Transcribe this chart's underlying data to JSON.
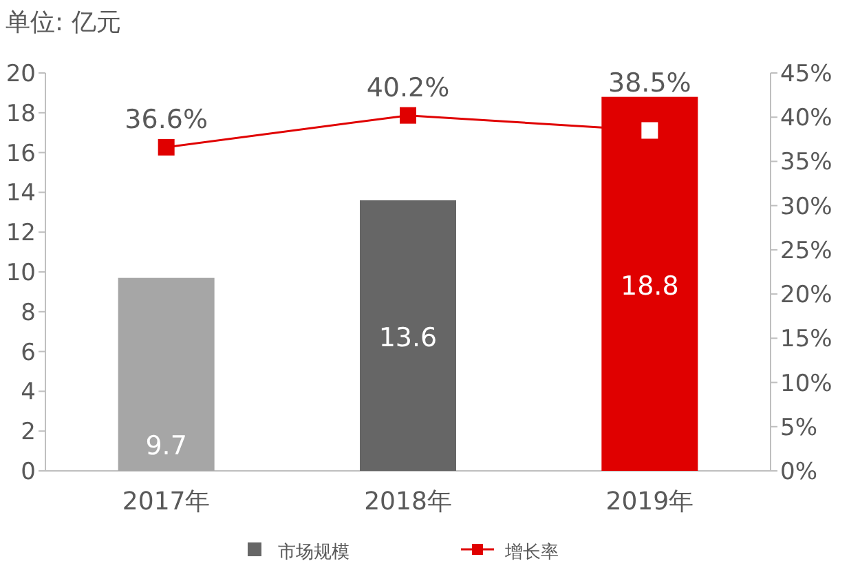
{
  "chart_data": {
    "type": "bar",
    "categories": [
      "2017年",
      "2018年",
      "2019年"
    ],
    "series": [
      {
        "name": "市场规模",
        "color": "#666666",
        "colors": [
          "#a6a6a6",
          "#666666",
          "#e00000"
        ],
        "values": [
          9.7,
          13.6,
          18.8
        ],
        "value_labels": [
          "9.7",
          "13.6",
          "18.8"
        ]
      },
      {
        "name": "增长率",
        "type": "line",
        "axis": "y2",
        "color": "#e00000",
        "values": [
          36.6,
          40.2,
          38.5
        ],
        "value_labels": [
          "36.6%",
          "40.2%",
          "38.5%"
        ]
      }
    ],
    "ylim": [
      0,
      20
    ],
    "yticks": [
      0,
      2,
      4,
      6,
      8,
      10,
      12,
      14,
      16,
      18,
      20
    ],
    "y2lim": [
      0,
      45
    ],
    "y2ticks": [
      {
        "value": 0,
        "label": "0%"
      },
      {
        "value": 5,
        "label": "5%"
      },
      {
        "value": 10,
        "label": "10%"
      },
      {
        "value": 15,
        "label": "15%"
      },
      {
        "value": 20,
        "label": "20%"
      },
      {
        "value": 25,
        "label": "25%"
      },
      {
        "value": 30,
        "label": "30%"
      },
      {
        "value": 35,
        "label": "35%"
      },
      {
        "value": 40,
        "label": "40%"
      },
      {
        "value": 45,
        "label": "45%"
      }
    ],
    "legend": "bottom",
    "marker": "square",
    "grid": false,
    "annotations": [
      "单位: 亿元"
    ]
  }
}
